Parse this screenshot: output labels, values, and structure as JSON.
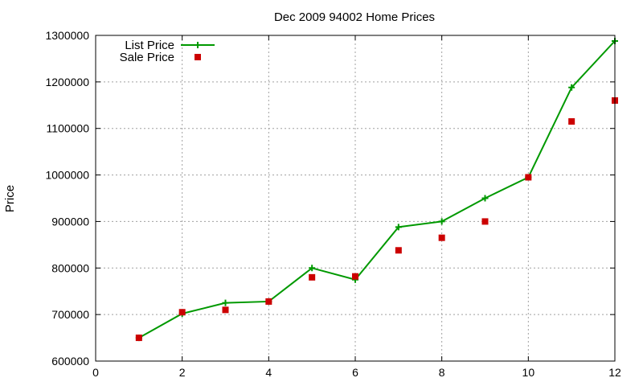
{
  "chart_data": {
    "type": "line",
    "title": "Dec 2009 94002 Home Prices",
    "xlabel": "",
    "ylabel": "Price",
    "xlim": [
      0,
      12
    ],
    "ylim": [
      600000,
      1300000
    ],
    "xticks": [
      "0",
      "2",
      "4",
      "6",
      "8",
      "10",
      "12"
    ],
    "yticks": [
      "600000",
      "700000",
      "800000",
      "900000",
      "1000000",
      "1100000",
      "1200000",
      "1300000"
    ],
    "grid": true,
    "legend_position": "top-left",
    "x": [
      1,
      2,
      3,
      4,
      5,
      6,
      7,
      8,
      9,
      10,
      11,
      12
    ],
    "series": [
      {
        "name": "List Price",
        "style": "line-with-plus-markers",
        "color": "#009900",
        "values": [
          650000,
          702000,
          725000,
          728000,
          800000,
          775000,
          888000,
          900000,
          950000,
          995000,
          1188000,
          1288000
        ]
      },
      {
        "name": "Sale Price",
        "style": "square-markers",
        "color": "#cc0000",
        "values": [
          650000,
          705000,
          710000,
          728000,
          780000,
          782000,
          838000,
          865000,
          900000,
          995000,
          1115000,
          1160000
        ]
      }
    ]
  }
}
